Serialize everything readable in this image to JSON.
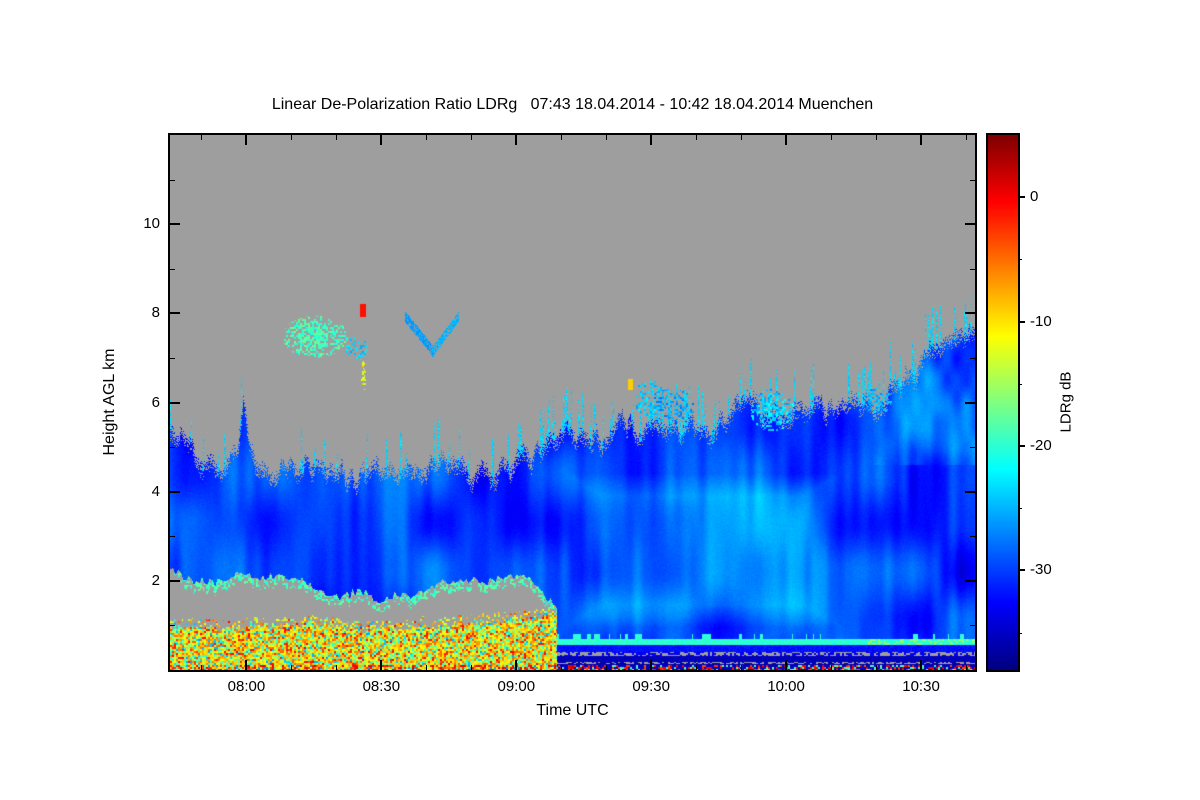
{
  "chart_data": {
    "type": "heatmap",
    "title": "Linear De-Polarization Ratio LDRg   07:43 18.04.2014 - 10:42 18.04.2014 Muenchen",
    "x_axis": {
      "label": "Time UTC",
      "start_time": "07:43",
      "end_time": "10:42",
      "tick_labels": [
        "08:00",
        "08:30",
        "09:00",
        "09:30",
        "10:00",
        "10:30"
      ],
      "tick_minutes": [
        480,
        510,
        540,
        570,
        600,
        630
      ],
      "minor_tick_step_minutes": 10,
      "range_minutes": [
        463,
        642
      ]
    },
    "y_axis": {
      "label": "Height AGL km",
      "ticks": [
        2,
        4,
        6,
        8,
        10
      ],
      "minor_ticks": [
        1,
        3,
        5,
        7,
        9,
        11
      ],
      "range_km": [
        0,
        12
      ]
    },
    "colorbar": {
      "label": "LDRg dB",
      "ticks": [
        0,
        -10,
        -20,
        -30
      ],
      "minor_ticks": [
        -5,
        -15,
        -25,
        -35
      ],
      "range_db": [
        -38,
        5
      ],
      "colormap": "jet"
    },
    "no_data_color": "#9e9e9e",
    "layers": {
      "transition_minute": 549,
      "cloud_top_km": [
        [
          463,
          5.2
        ],
        [
          467,
          4.9
        ],
        [
          471,
          4.4
        ],
        [
          475,
          4.5
        ],
        [
          478,
          4.8
        ],
        [
          479.3,
          5.9
        ],
        [
          480.6,
          4.8
        ],
        [
          484,
          4.4
        ],
        [
          488,
          4.3
        ],
        [
          492,
          4.5
        ],
        [
          496,
          4.35
        ],
        [
          500,
          4.3
        ],
        [
          504,
          4.2
        ],
        [
          508,
          4.45
        ],
        [
          512,
          4.25
        ],
        [
          516,
          4.3
        ],
        [
          520,
          4.35
        ],
        [
          524,
          4.6
        ],
        [
          528,
          4.3
        ],
        [
          532,
          4.25
        ],
        [
          536,
          4.4
        ],
        [
          540,
          4.5
        ],
        [
          544,
          4.7
        ],
        [
          548,
          5.0
        ],
        [
          552,
          5.2
        ],
        [
          556,
          4.9
        ],
        [
          560,
          5.15
        ],
        [
          564,
          5.5
        ],
        [
          568,
          5.1
        ],
        [
          572,
          5.35
        ],
        [
          576,
          5.2
        ],
        [
          580,
          5.55
        ],
        [
          584,
          5.3
        ],
        [
          588,
          5.65
        ],
        [
          592,
          5.9
        ],
        [
          596,
          5.5
        ],
        [
          600,
          5.75
        ],
        [
          604,
          5.6
        ],
        [
          608,
          5.85
        ],
        [
          612,
          5.65
        ],
        [
          616,
          5.95
        ],
        [
          620,
          5.8
        ],
        [
          624,
          6.15
        ],
        [
          628,
          6.5
        ],
        [
          632,
          6.9
        ],
        [
          636,
          7.2
        ],
        [
          640,
          7.45
        ],
        [
          642,
          7.3
        ]
      ],
      "gray_blob_top_km": [
        [
          463,
          2.25
        ],
        [
          468,
          2.0
        ],
        [
          473,
          1.95
        ],
        [
          478,
          2.15
        ],
        [
          483,
          2.05
        ],
        [
          488,
          2.1
        ],
        [
          493,
          1.95
        ],
        [
          497,
          1.75
        ],
        [
          501,
          1.6
        ],
        [
          505,
          1.8
        ],
        [
          509,
          1.55
        ],
        [
          513,
          1.7
        ],
        [
          517,
          1.6
        ],
        [
          521,
          1.85
        ],
        [
          525,
          2.0
        ],
        [
          529,
          2.05
        ],
        [
          533,
          1.95
        ],
        [
          537,
          2.05
        ],
        [
          541,
          2.1
        ],
        [
          545,
          1.9
        ],
        [
          547,
          1.6
        ],
        [
          549,
          1.35
        ]
      ],
      "aerosol_top_km": [
        [
          463,
          0.95
        ],
        [
          475,
          0.9
        ],
        [
          485,
          0.95
        ],
        [
          495,
          1.0
        ],
        [
          505,
          0.88
        ],
        [
          515,
          0.92
        ],
        [
          525,
          1.0
        ],
        [
          535,
          1.05
        ],
        [
          543,
          1.15
        ],
        [
          549,
          1.25
        ]
      ],
      "cloud_value_db": {
        "base": -34.5,
        "amp1": 6,
        "amp2": 2.5,
        "clamp": [
          -35,
          -21
        ],
        "lighten": {
          "t0": 551,
          "t1": 612,
          "h0": 0.95,
          "h1": 4.4,
          "amount": 3.5
        },
        "right_cyan": {
          "t_start": 616,
          "h_min": 4.6,
          "amount": 4
        }
      },
      "aerosol_palette": [
        [
          0.22,
          -17,
          4
        ],
        [
          0.52,
          -12,
          4
        ],
        [
          0.72,
          -8,
          4
        ],
        [
          0.82,
          -3,
          3
        ],
        [
          0.93,
          -21,
          3
        ],
        [
          2,
          -26,
          3
        ]
      ],
      "surface_stripes": {
        "cyan_line": {
          "h0": 0.56,
          "h1": 0.68,
          "db": -20
        },
        "blue_band": {
          "h0": 0.4,
          "h1": 0.56,
          "db": -31
        },
        "gray_dash1": {
          "h0": 0.3,
          "h1": 0.4,
          "db": -33
        },
        "navy_band": {
          "h0": 0.17,
          "h1": 0.3,
          "db": -36
        },
        "gray_dash2": {
          "h0": 0.12,
          "h1": 0.17,
          "db": -36
        }
      },
      "bottom_line_top_km": 0.1,
      "features": [
        {
          "type": "speckle",
          "t0": 488,
          "t1": 502.5,
          "h0": 7.0,
          "h1": 7.95,
          "v": -19,
          "density": 0.65,
          "jitter": 2
        },
        {
          "type": "speckle",
          "t0": 502,
          "t1": 507,
          "h0": 6.95,
          "h1": 7.5,
          "v": -24,
          "density": 0.35,
          "jitter": 2
        },
        {
          "type": "solid",
          "t0": 505.5,
          "t1": 506.3,
          "h0": 7.95,
          "h1": 8.2,
          "v": -1
        },
        {
          "type": "speckle",
          "t0": 505.5,
          "t1": 506.5,
          "h0": 6.25,
          "h1": 6.95,
          "v": -12,
          "density": 0.75,
          "jitter": 3
        },
        {
          "type": "line",
          "t0": 515.5,
          "h0": 7.9,
          "t1": 521.5,
          "h1": 7.15,
          "w": 0.1,
          "v": -26,
          "density": 0.85
        },
        {
          "type": "line",
          "t0": 521.5,
          "h0": 7.15,
          "t1": 527,
          "h1": 7.9,
          "w": 0.09,
          "v": -25,
          "density": 0.8
        },
        {
          "type": "solid",
          "t0": 565,
          "t1": 565.8,
          "h0": 6.3,
          "h1": 6.5,
          "v": -9
        },
        {
          "type": "speckle",
          "t0": 566,
          "t1": 573,
          "h0": 5.7,
          "h1": 6.5,
          "v": -24,
          "density": 0.45,
          "jitter": 2
        },
        {
          "type": "speckle",
          "t0": 569,
          "t1": 580,
          "h0": 5.55,
          "h1": 6.3,
          "v": -26,
          "density": 0.4,
          "jitter": 2
        },
        {
          "type": "speckle",
          "t0": 592,
          "t1": 602,
          "h0": 5.35,
          "h1": 6.3,
          "v": -24,
          "density": 0.55,
          "jitter": 3
        },
        {
          "type": "speckle",
          "t0": 617,
          "t1": 624,
          "h0": 5.7,
          "h1": 6.4,
          "v": -25,
          "density": 0.4,
          "jitter": 2
        }
      ]
    }
  }
}
